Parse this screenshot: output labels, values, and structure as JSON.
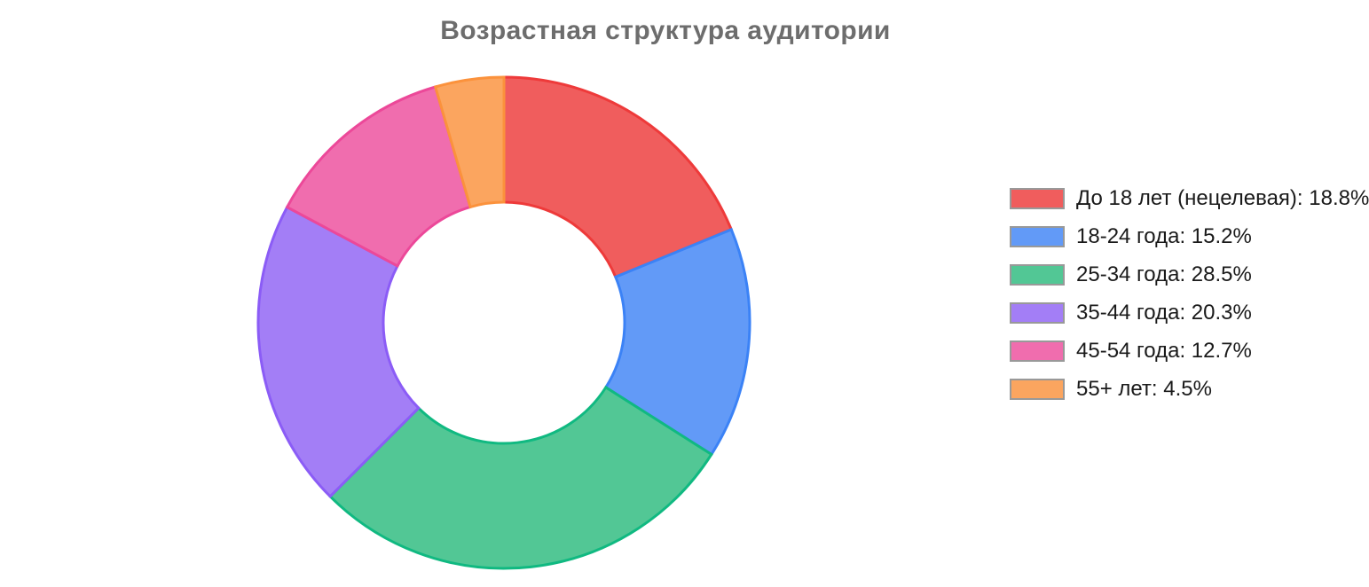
{
  "chart_data": {
    "type": "pie",
    "variant": "donut",
    "title": "Возрастная структура аудитории",
    "categories": [
      "До 18 лет (нецелевая)",
      "18-24 года",
      "25-34 года",
      "35-44 года",
      "45-54 года",
      "55+ лет"
    ],
    "values": [
      18.8,
      15.2,
      28.5,
      20.3,
      12.7,
      4.5
    ],
    "value_unit": "%",
    "legend_entries": [
      "До 18 лет (нецелевая): 18.8%",
      "18-24 года: 15.2%",
      "25-34 года: 28.5%",
      "35-44 года: 20.3%",
      "45-54 года: 12.7%",
      "55+ лет: 4.5%"
    ],
    "slice_fill_colors": [
      "#f05d5d",
      "#629af7",
      "#52c795",
      "#a37ef6",
      "#f06dae",
      "#fba55f"
    ],
    "slice_border_colors": [
      "#ee3a3a",
      "#3b82f6",
      "#10b981",
      "#8b5cf6",
      "#ec4899",
      "#fb923c"
    ],
    "legend_position": "right",
    "legend_swatch_border_color": "#999999",
    "legend_text_color": "#1a1a1a",
    "title_color": "#6d6d6d",
    "start_angle_deg": -90,
    "direction": "clockwise",
    "cutout_ratio": 0.49,
    "grid": false
  }
}
